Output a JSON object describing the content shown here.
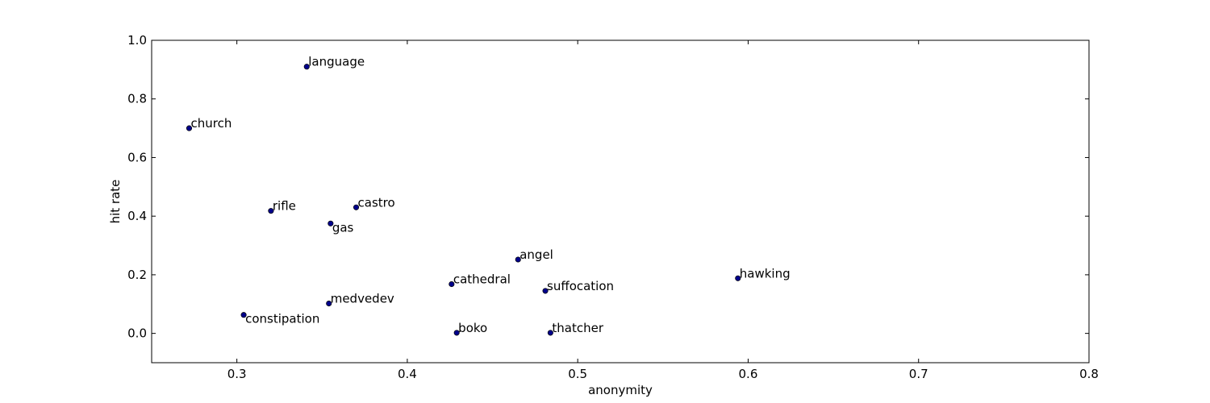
{
  "chart_data": {
    "type": "scatter",
    "xlabel": "anonymity",
    "ylabel": "hit rate",
    "xlim": [
      0.25,
      0.8
    ],
    "ylim": [
      -0.1,
      1.0
    ],
    "xticks": [
      "0.3",
      "0.4",
      "0.5",
      "0.6",
      "0.7",
      "0.8"
    ],
    "yticks": [
      "0.0",
      "0.2",
      "0.4",
      "0.6",
      "0.8",
      "1.0"
    ],
    "grid": false,
    "marker_color": "#00008b",
    "points": [
      {
        "label": "language",
        "x": 0.341,
        "y": 0.91
      },
      {
        "label": "church",
        "x": 0.272,
        "y": 0.7
      },
      {
        "label": "rifle",
        "x": 0.32,
        "y": 0.418
      },
      {
        "label": "castro",
        "x": 0.37,
        "y": 0.43
      },
      {
        "label": "gas",
        "x": 0.355,
        "y": 0.375
      },
      {
        "label": "angel",
        "x": 0.465,
        "y": 0.252
      },
      {
        "label": "hawking",
        "x": 0.594,
        "y": 0.188
      },
      {
        "label": "cathedral",
        "x": 0.426,
        "y": 0.168
      },
      {
        "label": "suffocation",
        "x": 0.481,
        "y": 0.145
      },
      {
        "label": "medvedev",
        "x": 0.354,
        "y": 0.102
      },
      {
        "label": "constipation",
        "x": 0.304,
        "y": 0.063
      },
      {
        "label": "boko",
        "x": 0.429,
        "y": 0.002
      },
      {
        "label": "thatcher",
        "x": 0.484,
        "y": 0.002
      }
    ]
  }
}
